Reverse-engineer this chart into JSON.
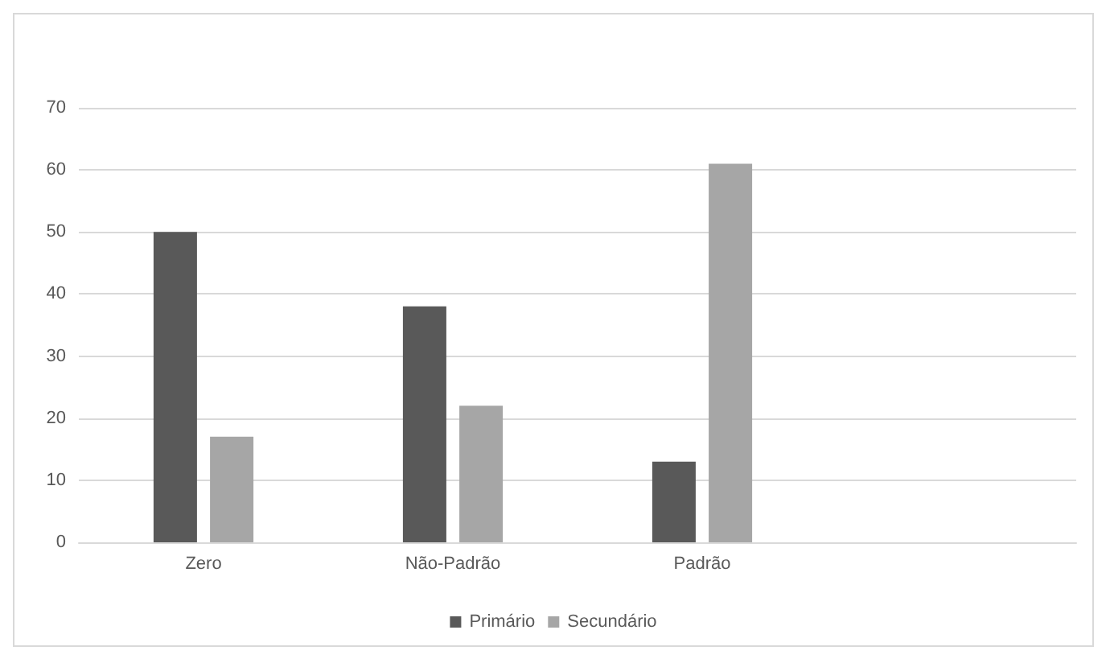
{
  "chart_data": {
    "type": "bar",
    "categories": [
      "Zero",
      "Não-Padrão",
      "Padrão",
      null
    ],
    "series": [
      {
        "name": "Primário",
        "color": "#595959",
        "values": [
          50,
          38,
          13,
          null
        ]
      },
      {
        "name": "Secundário",
        "color": "#a6a6a6",
        "values": [
          17,
          22,
          61,
          null
        ]
      }
    ],
    "ylim": [
      0,
      70
    ],
    "yticks": [
      0,
      10,
      20,
      30,
      40,
      50,
      60,
      70
    ],
    "grid": "y",
    "legend": "bottom"
  }
}
